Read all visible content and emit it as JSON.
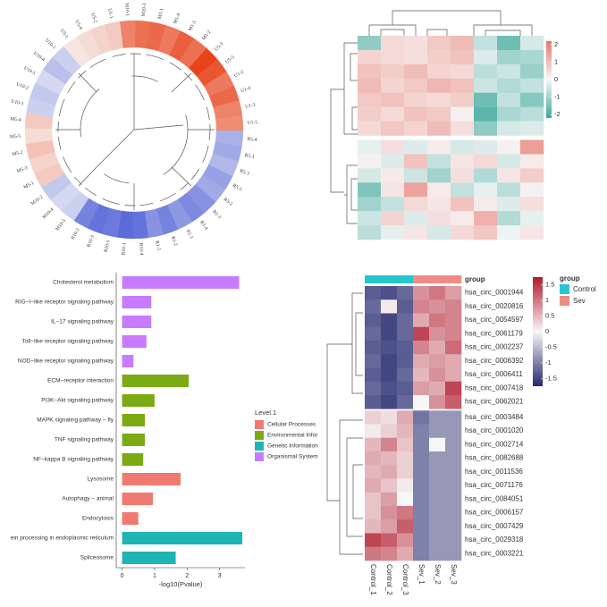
{
  "chart_data": [
    {
      "type": "circular-heatmap",
      "labels": [
        "U5-4",
        "U5-2",
        "U1-1",
        "M10-1",
        "M10-3",
        "M1-1",
        "M1-4",
        "M1-3",
        "M1-2",
        "U5-3",
        "U5-5",
        "U1-2",
        "U1-4",
        "U1-3",
        "U1-5",
        "R5-4",
        "R5-1",
        "R5-3",
        "R5-5",
        "R5-2",
        "R1-3",
        "R1-4",
        "R1-1",
        "R1-2",
        "R1-5",
        "R10-4",
        "R10-1",
        "R10-5",
        "R10-3",
        "R10-2",
        "M10-5",
        "M10-4",
        "M10-2",
        "M5-1",
        "M5-3",
        "M5-2",
        "M5-5",
        "M5-4",
        "U10-3",
        "U10-2",
        "U10-5",
        "U10-4",
        "U10-1",
        "U5-1"
      ],
      "values": [
        0.3,
        0.4,
        0.5,
        1.3,
        1.5,
        1.6,
        1.4,
        1.7,
        1.5,
        2.0,
        1.8,
        1.4,
        1.6,
        1.3,
        1.2,
        -0.9,
        -1.0,
        -0.8,
        -1.1,
        -1.0,
        -1.3,
        -1.4,
        -1.2,
        -1.5,
        -1.3,
        -1.7,
        -1.8,
        -1.6,
        -1.7,
        -1.5,
        -0.5,
        -0.4,
        -0.6,
        0.5,
        0.4,
        0.6,
        0.3,
        0.5,
        -0.5,
        -0.6,
        -0.4,
        -0.7,
        -0.5,
        0.2
      ],
      "lim": [
        -2,
        2
      ],
      "colorscale": [
        "#4a5bd6",
        "#f7f7f7",
        "#e8441c"
      ]
    },
    {
      "type": "heatmap",
      "values": [
        [
          -1.2,
          0.5,
          0.4,
          0.8,
          1.0,
          -0.6,
          -1.6,
          -0.4
        ],
        [
          0.6,
          0.5,
          0.4,
          0.7,
          0.9,
          -0.3,
          -1.0,
          -0.9
        ],
        [
          0.9,
          0.7,
          1.0,
          0.6,
          0.5,
          -0.7,
          -0.5,
          -1.1
        ],
        [
          1.0,
          0.6,
          0.8,
          1.1,
          0.9,
          -0.5,
          -0.8,
          -0.6
        ],
        [
          0.8,
          0.9,
          0.6,
          0.5,
          0.7,
          -1.6,
          -0.6,
          -1.3
        ],
        [
          0.7,
          0.5,
          0.9,
          0.8,
          0.1,
          -1.8,
          -0.9,
          -0.7
        ],
        [
          0.5,
          0.8,
          0.6,
          1.0,
          0.4,
          -1.2,
          -0.4,
          -0.3
        ],
        [
          -0.2,
          0.4,
          -0.3,
          0.2,
          -0.4,
          -0.3,
          0.1,
          1.5
        ],
        [
          0.1,
          -0.3,
          0.9,
          -0.6,
          0.3,
          0.5,
          -0.4,
          0.2
        ],
        [
          -0.4,
          0.2,
          -0.5,
          -1.0,
          0.4,
          -0.8,
          0.3,
          0.7
        ],
        [
          -1.4,
          0.3,
          1.4,
          0.2,
          -0.6,
          -0.2,
          -0.7,
          0.1
        ],
        [
          -1.0,
          -0.6,
          0.5,
          0.3,
          0.9,
          0.2,
          -0.3,
          0.4
        ],
        [
          -0.5,
          0.6,
          -0.3,
          0.4,
          0.2,
          1.2,
          -0.8,
          -0.2
        ],
        [
          -0.7,
          -0.2,
          0.3,
          -0.4,
          0.5,
          0.8,
          -0.1,
          0.3
        ]
      ],
      "lim": [
        -2.2,
        2.2
      ],
      "ticks": [
        2,
        1,
        0,
        -1,
        -2
      ],
      "colorscale": [
        "#3aa89c",
        "#f7f7f7",
        "#e8756b"
      ]
    },
    {
      "type": "bar",
      "orientation": "horizontal",
      "categories": [
        "Cholesterol metabolism",
        "RIG−I−like receptor signaling pathway",
        "IL−17 signaling pathway",
        "Toll−like receptor signaling pathway",
        "NOD−like receptor signaling pathway",
        "ECM−receptor interaction",
        "PI3K−Akt signaling pathway",
        "MAPK signaling pathway − fly",
        "TNF signaling pathway",
        "NF−kappa B signaling pathway",
        "Lysosome",
        "Autophagy − animal",
        "Endocytosis",
        "ein processing in endoplasmic reticulum",
        "Spliceosome"
      ],
      "series": [
        {
          "name": "Cellular Processes",
          "color": "#f07a72",
          "values": [
            null,
            null,
            null,
            null,
            null,
            null,
            null,
            null,
            null,
            null,
            1.8,
            0.95,
            0.5,
            null,
            null
          ]
        },
        {
          "name": "Environmental Infor",
          "color": "#7caa14",
          "values": [
            null,
            null,
            null,
            null,
            null,
            2.05,
            1.0,
            0.7,
            0.7,
            0.65,
            null,
            null,
            null,
            null,
            null
          ]
        },
        {
          "name": "Genetic Information",
          "color": "#1fb5b5",
          "values": [
            null,
            null,
            null,
            null,
            null,
            null,
            null,
            null,
            null,
            null,
            null,
            null,
            null,
            3.7,
            1.65
          ]
        },
        {
          "name": "Organismal System",
          "color": "#c77cff",
          "values": [
            3.6,
            0.9,
            0.9,
            0.75,
            0.35,
            null,
            null,
            null,
            null,
            null,
            null,
            null,
            null,
            null,
            null
          ]
        }
      ],
      "xlabel": "-log10(Pvalue)",
      "xlim": [
        -0.18,
        3.78
      ],
      "xticks": [
        0,
        1,
        2,
        3
      ],
      "legend_title": "Level.1"
    },
    {
      "type": "heatmap",
      "rows": [
        "hsa_circ_0001944",
        "hsa_circ_0020816",
        "hsa_circ_0054597",
        "hsa_circ_0061179",
        "hsa_circ_0002237",
        "hsa_circ_0006392",
        "hsa_circ_0006411",
        "hsa_circ_0007418",
        "hsa_circ_0062021",
        "hsa_circ_0003484",
        "hsa_circ_0001020",
        "hsa_circ_0002714",
        "hsa_circ_0082688",
        "hsa_circ_0011536",
        "hsa_circ_0071176",
        "hsa_circ_0084051",
        "hsa_circ_0006157",
        "hsa_circ_0007429",
        "hsa_circ_0029318",
        "hsa_circ_0003221"
      ],
      "columns": [
        "Control_1",
        "Control_2",
        "Control_3",
        "Sev_1",
        "Sev_2",
        "Sev_3"
      ],
      "column_groups": [
        "Control",
        "Control",
        "Control",
        "Sev",
        "Sev",
        "Sev"
      ],
      "group_label": "group",
      "legend_title": "group",
      "legend": [
        {
          "name": "Control",
          "color": "#26c6d0"
        },
        {
          "name": "Sev",
          "color": "#f08c86"
        }
      ],
      "values": [
        [
          -1.3,
          -1.4,
          -1.2,
          0.8,
          1.0,
          0.7
        ],
        [
          -1.2,
          0.1,
          -1.3,
          0.9,
          0.8,
          0.9
        ],
        [
          -1.3,
          -1.5,
          -1.2,
          0.6,
          1.0,
          0.9
        ],
        [
          -1.2,
          -1.5,
          -1.2,
          1.4,
          0.8,
          0.9
        ],
        [
          -1.3,
          -1.4,
          -1.3,
          0.9,
          0.6,
          1.1
        ],
        [
          -1.2,
          -1.5,
          -1.3,
          0.6,
          0.7,
          0.6
        ],
        [
          -1.3,
          -1.5,
          -1.2,
          0.5,
          0.8,
          0.6
        ],
        [
          -1.2,
          -1.4,
          -1.3,
          0.7,
          0.6,
          1.4
        ],
        [
          -1.3,
          -1.5,
          -1.2,
          0.0,
          0.8,
          1.2
        ],
        [
          0.3,
          0.2,
          0.6,
          -1.1,
          -0.8,
          -0.8
        ],
        [
          0.1,
          0.3,
          0.5,
          -1.0,
          -0.8,
          -0.8
        ],
        [
          0.5,
          0.9,
          0.4,
          -1.0,
          0.0,
          -0.8
        ],
        [
          0.6,
          0.5,
          0.3,
          -1.0,
          -0.8,
          -0.8
        ],
        [
          0.5,
          0.6,
          0.3,
          -1.0,
          -0.8,
          -0.8
        ],
        [
          0.6,
          0.4,
          0.1,
          -1.0,
          -0.8,
          -0.8
        ],
        [
          0.4,
          0.7,
          0.0,
          -1.0,
          -0.8,
          -0.8
        ],
        [
          0.4,
          0.8,
          1.0,
          -1.0,
          -0.8,
          -0.8
        ],
        [
          0.5,
          0.7,
          1.2,
          -1.0,
          -0.8,
          -0.8
        ],
        [
          1.4,
          1.2,
          0.8,
          -1.0,
          -0.8,
          -0.8
        ],
        [
          1.0,
          0.9,
          0.6,
          -1.0,
          -0.8,
          -0.8
        ]
      ],
      "lim": [
        -1.75,
        1.75
      ],
      "ticks": [
        1.5,
        1,
        0.5,
        0,
        -0.5,
        -1,
        -1.5
      ],
      "colorscale": [
        "#24286e",
        "#f7f7f7",
        "#b2182b"
      ]
    }
  ]
}
